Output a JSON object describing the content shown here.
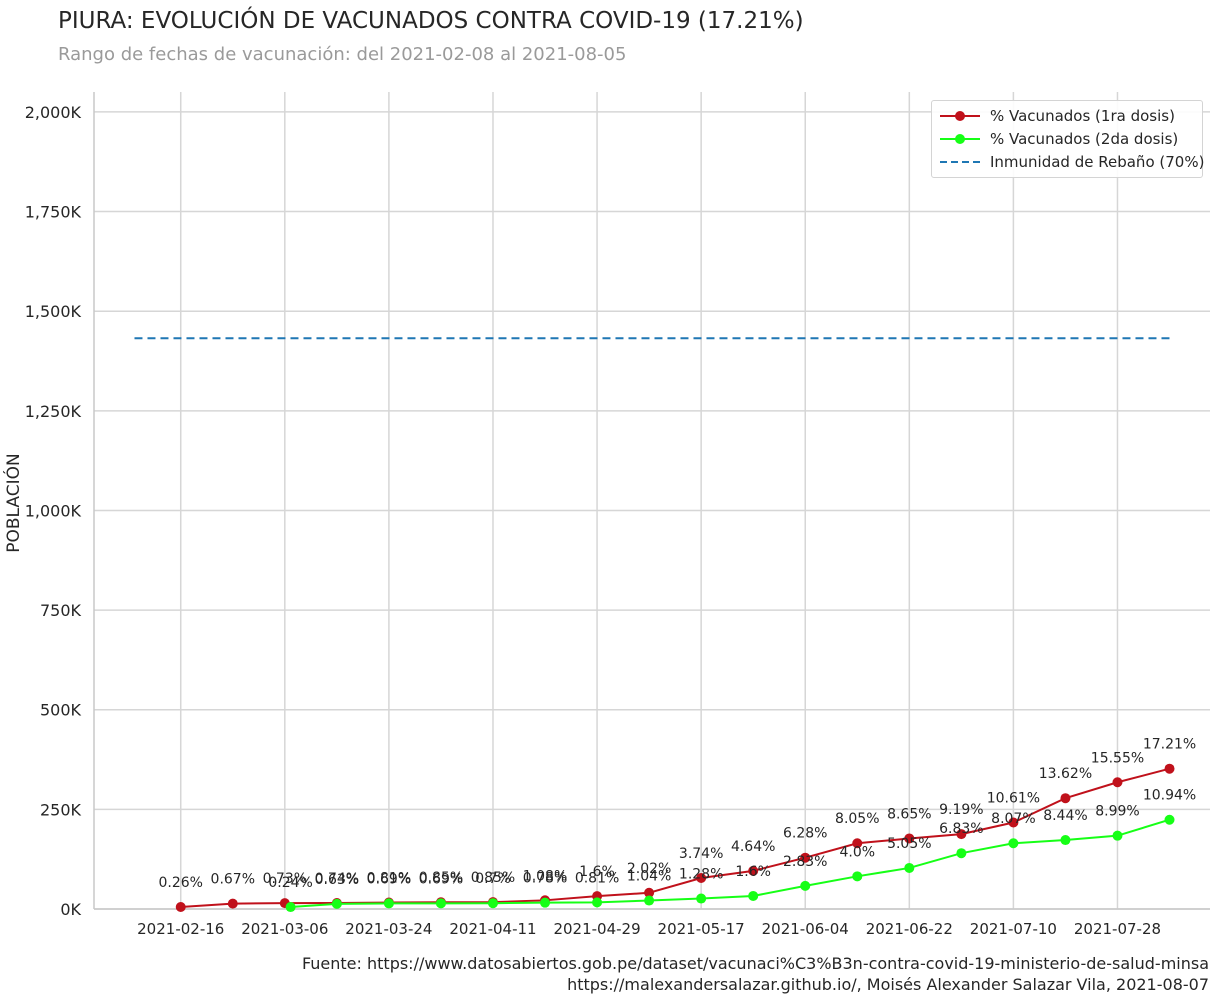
{
  "title": "PIURA: EVOLUCIÓN DE VACUNADOS CONTRA COVID-19 (17.21%)",
  "subtitle": "Rango de fechas de vacunación: del 2021-02-08 al 2021-08-05",
  "source_line1": "Fuente: https://www.datosabiertos.gob.pe/dataset/vacunaci%C3%B3n-contra-covid-19-ministerio-de-salud-minsa",
  "source_line2": "https://malexandersalazar.github.io/, Moisés Alexander Salazar Vila, 2021-08-07",
  "colors": {
    "dose1": "#c0111b",
    "dose2": "#16ff16",
    "herd": "#1f77b4",
    "grid": "#d6d6d6",
    "text": "#262626"
  },
  "chart_data": {
    "type": "line",
    "ylabel": "POBLACIÓN",
    "ylim": [
      0,
      2050000
    ],
    "yticks": [
      0,
      250000,
      500000,
      750000,
      1000000,
      1250000,
      1500000,
      1750000,
      2000000
    ],
    "ytick_labels": [
      "0K",
      "250K",
      "500K",
      "750K",
      "1,000K",
      "1,250K",
      "1,500K",
      "1,750K",
      "2,000K"
    ],
    "xlim": [
      "2021-02-01",
      "2021-08-13"
    ],
    "xticks": [
      "2021-02-16",
      "2021-03-06",
      "2021-03-24",
      "2021-04-11",
      "2021-04-29",
      "2021-05-17",
      "2021-06-04",
      "2021-06-22",
      "2021-07-10",
      "2021-07-28"
    ],
    "grid": true,
    "legend_position": "top-right",
    "series": [
      {
        "name": "% Vacunados (1ra dosis)",
        "style": "line-marker",
        "points": [
          {
            "x": "2021-02-16",
            "y": 5000,
            "label": "0.26%"
          },
          {
            "x": "2021-02-25",
            "y": 13500,
            "label": "0.67%"
          },
          {
            "x": "2021-03-06",
            "y": 14700,
            "label": "0.73%"
          },
          {
            "x": "2021-03-15",
            "y": 15000,
            "label": "0.74%"
          },
          {
            "x": "2021-03-24",
            "y": 16300,
            "label": "0.81%"
          },
          {
            "x": "2021-04-02",
            "y": 17000,
            "label": "0.85%"
          },
          {
            "x": "2021-04-11",
            "y": 17200,
            "label": "0.85%"
          },
          {
            "x": "2021-04-20",
            "y": 21800,
            "label": "1.08%"
          },
          {
            "x": "2021-04-29",
            "y": 32200,
            "label": "1.6%"
          },
          {
            "x": "2021-05-08",
            "y": 40700,
            "label": "2.02%"
          },
          {
            "x": "2021-05-17",
            "y": 77800,
            "label": "3.74%"
          },
          {
            "x": "2021-05-26",
            "y": 95700,
            "label": "4.64%"
          },
          {
            "x": "2021-06-04",
            "y": 128700,
            "label": "6.28%"
          },
          {
            "x": "2021-06-13",
            "y": 165000,
            "label": "8.05%"
          },
          {
            "x": "2021-06-22",
            "y": 177000,
            "label": "8.65%"
          },
          {
            "x": "2021-07-01",
            "y": 188000,
            "label": "9.19%"
          },
          {
            "x": "2021-07-10",
            "y": 217000,
            "label": "10.61%"
          },
          {
            "x": "2021-07-19",
            "y": 278000,
            "label": "13.62%"
          },
          {
            "x": "2021-07-28",
            "y": 318000,
            "label": "15.55%"
          },
          {
            "x": "2021-08-06",
            "y": 352000,
            "label": "17.21%"
          }
        ]
      },
      {
        "name": "% Vacunados (2da dosis)",
        "style": "line-marker",
        "points": [
          {
            "x": "2021-03-07",
            "y": 4900,
            "label": "0.24%"
          },
          {
            "x": "2021-03-15",
            "y": 12800,
            "label": "0.63%"
          },
          {
            "x": "2021-03-24",
            "y": 14000,
            "label": "0.69%"
          },
          {
            "x": "2021-04-02",
            "y": 14200,
            "label": "0.69%"
          },
          {
            "x": "2021-04-11",
            "y": 14500,
            "label": "0.7%"
          },
          {
            "x": "2021-04-20",
            "y": 15900,
            "label": "0.78%"
          },
          {
            "x": "2021-04-29",
            "y": 16600,
            "label": "0.81%"
          },
          {
            "x": "2021-05-08",
            "y": 21200,
            "label": "1.04%"
          },
          {
            "x": "2021-05-17",
            "y": 26200,
            "label": "1.28%"
          },
          {
            "x": "2021-05-26",
            "y": 32700,
            "label": "1.6%"
          },
          {
            "x": "2021-06-04",
            "y": 58000,
            "label": "2.83%"
          },
          {
            "x": "2021-06-13",
            "y": 82000,
            "label": "4.0%"
          },
          {
            "x": "2021-06-22",
            "y": 103000,
            "label": "5.05%"
          },
          {
            "x": "2021-07-01",
            "y": 140000,
            "label": "6.83%"
          },
          {
            "x": "2021-07-10",
            "y": 165000,
            "label": "8.07%"
          },
          {
            "x": "2021-07-19",
            "y": 173000,
            "label": "8.44%"
          },
          {
            "x": "2021-07-28",
            "y": 184000,
            "label": "8.99%"
          },
          {
            "x": "2021-08-06",
            "y": 224000,
            "label": "10.94%"
          }
        ]
      },
      {
        "name": "Inmunidad de Rebaño (70%)",
        "style": "dashed",
        "points": [
          {
            "x": "2021-02-08",
            "y": 1432000
          },
          {
            "x": "2021-08-06",
            "y": 1432000
          }
        ]
      }
    ]
  }
}
